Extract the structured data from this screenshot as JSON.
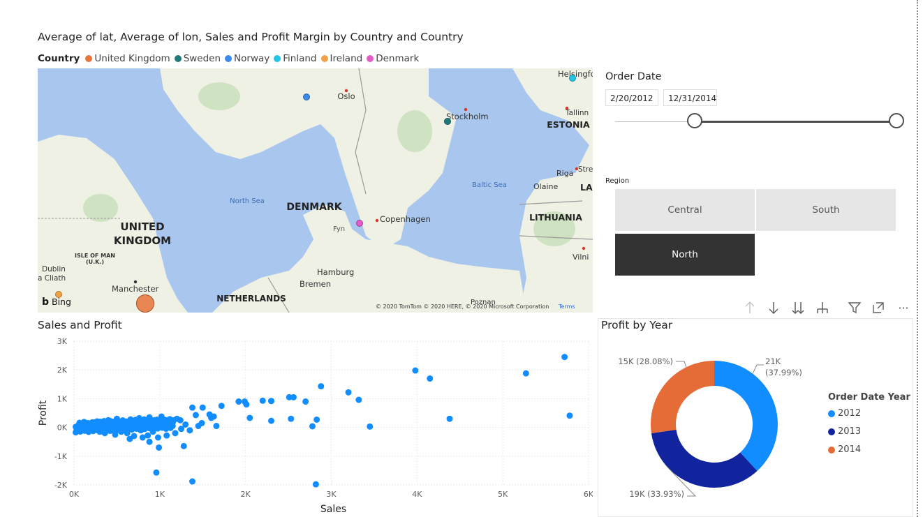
{
  "map": {
    "title": "Average of lat, Average of lon, Sales and Profit Margin by Country and Country",
    "legend_title": "Country",
    "legend": [
      {
        "label": "United Kingdom",
        "color": "#E8743B"
      },
      {
        "label": "Sweden",
        "color": "#1F7A7A"
      },
      {
        "label": "Norway",
        "color": "#3B8BEB"
      },
      {
        "label": "Finland",
        "color": "#22C4E8"
      },
      {
        "label": "Ireland",
        "color": "#F2A246"
      },
      {
        "label": "Denmark",
        "color": "#E35AC8"
      }
    ],
    "labels": {
      "uk": "UNITED",
      "uk2": "KINGDOM",
      "denmark": "DENMARK",
      "estonia": "ESTONIA",
      "lithuania": "LITHUANIA",
      "netherlands": "NETHERLANDS",
      "latvia": "LA",
      "north_sea": "North Sea",
      "baltic_sea": "Baltic Sea",
      "oslo": "Oslo",
      "stockholm": "Stockholm",
      "helsinki": "Helsingfo",
      "tallinn": "Tallinn",
      "riga": "Riga",
      "olaine": "Olaine",
      "copenhagen": "Copenhagen",
      "fyn": "Fyn",
      "hamburg": "Hamburg",
      "bremen": "Bremen",
      "manchester": "Manchester",
      "dublin": "Dublin",
      "cliath": "a Cliath",
      "isle_of_man": "ISLE OF MAN",
      "uk_short": "(U.K.)",
      "vilnius": "Vilni",
      "stre": "Stre",
      "poznan": "Poznan",
      "bing": "Bing",
      "attribution": "© 2020 TomTom © 2020 HERE, © 2020 Microsoft Corporation",
      "terms": "Terms"
    }
  },
  "order_date": {
    "title": "Order Date",
    "start": "2/20/2012",
    "end": "12/31/2014"
  },
  "region": {
    "title": "Region",
    "tiles": [
      {
        "label": "Central",
        "selected": false
      },
      {
        "label": "South",
        "selected": false
      },
      {
        "label": "North",
        "selected": true
      }
    ]
  },
  "toolbar": {
    "icons": [
      "arrow-up-icon",
      "arrow-down-icon",
      "double-arrow-down-icon",
      "expand-hierarchy-icon",
      "filter-icon",
      "focus-mode-icon",
      "more-options-icon"
    ],
    "more": "···"
  },
  "scatter": {
    "title": "Sales and Profit",
    "x_label": "Sales",
    "y_label": "Profit",
    "x_ticks": [
      "0K",
      "1K",
      "2K",
      "3K",
      "4K",
      "5K",
      "6K"
    ],
    "y_ticks": [
      "3K",
      "2K",
      "1K",
      "0K",
      "-1K",
      "-2K"
    ]
  },
  "donut": {
    "title": "Profit by Year",
    "legend_title": "Order Date Year",
    "slices": [
      {
        "year": "2012",
        "value_label": "21K",
        "pct_label": "(37.99%)",
        "color": "#118DFF"
      },
      {
        "year": "2013",
        "value_label": "19K (33.93%)",
        "pct_label": "",
        "color": "#12239E"
      },
      {
        "year": "2014",
        "value_label": "15K (28.08%)",
        "pct_label": "",
        "color": "#E66C37"
      }
    ]
  },
  "chart_data": [
    {
      "type": "scatter",
      "title": "Sales and Profit",
      "xlabel": "Sales",
      "ylabel": "Profit",
      "xlim": [
        0,
        6000
      ],
      "ylim": [
        -2000,
        3000
      ],
      "grid": true,
      "points": [
        [
          5720,
          2450
        ],
        [
          5780,
          410
        ],
        [
          5270,
          1880
        ],
        [
          3980,
          1980
        ],
        [
          4150,
          1700
        ],
        [
          4380,
          300
        ],
        [
          3200,
          1220
        ],
        [
          3320,
          960
        ],
        [
          3450,
          30
        ],
        [
          2880,
          1430
        ],
        [
          2830,
          270
        ],
        [
          2780,
          40
        ],
        [
          2510,
          1050
        ],
        [
          2560,
          1050
        ],
        [
          2530,
          300
        ],
        [
          2700,
          900
        ],
        [
          2820,
          -1980
        ],
        [
          2300,
          920
        ],
        [
          2300,
          230
        ],
        [
          2300,
          920
        ],
        [
          2200,
          930
        ],
        [
          2050,
          330
        ],
        [
          1920,
          900
        ],
        [
          1990,
          900
        ],
        [
          2010,
          800
        ],
        [
          1720,
          750
        ],
        [
          1580,
          450
        ],
        [
          1630,
          380
        ],
        [
          1500,
          690
        ],
        [
          1380,
          690
        ],
        [
          1420,
          430
        ],
        [
          1490,
          150
        ],
        [
          1600,
          330
        ],
        [
          1660,
          50
        ],
        [
          1380,
          -1880
        ],
        [
          1280,
          -650
        ],
        [
          1020,
          380
        ],
        [
          990,
          -700
        ],
        [
          960,
          -1570
        ],
        [
          880,
          -500
        ],
        [
          960,
          200
        ],
        [
          1000,
          100
        ],
        [
          1200,
          300
        ],
        [
          1100,
          100
        ],
        [
          900,
          80
        ],
        [
          800,
          150
        ],
        [
          780,
          -100
        ],
        [
          850,
          0
        ],
        [
          700,
          -300
        ],
        [
          650,
          -400
        ],
        [
          620,
          -200
        ],
        [
          550,
          -150
        ],
        [
          500,
          300
        ],
        [
          450,
          200
        ],
        [
          400,
          250
        ],
        [
          350,
          220
        ],
        [
          300,
          200
        ],
        [
          250,
          180
        ],
        [
          200,
          150
        ],
        [
          150,
          100
        ],
        [
          100,
          80
        ],
        [
          50,
          40
        ],
        [
          20,
          20
        ],
        [
          60,
          -40
        ],
        [
          120,
          -60
        ],
        [
          180,
          -120
        ],
        [
          240,
          -90
        ],
        [
          300,
          -150
        ],
        [
          360,
          -200
        ],
        [
          420,
          -120
        ],
        [
          480,
          -250
        ],
        [
          540,
          -60
        ],
        [
          600,
          100
        ],
        [
          660,
          280
        ],
        [
          720,
          220
        ],
        [
          760,
          320
        ],
        [
          820,
          280
        ],
        [
          880,
          350
        ],
        [
          940,
          250
        ],
        [
          1040,
          200
        ],
        [
          1140,
          150
        ],
        [
          1240,
          250
        ],
        [
          1300,
          100
        ],
        [
          1180,
          -200
        ],
        [
          1080,
          -280
        ],
        [
          980,
          -350
        ],
        [
          300,
          50
        ],
        [
          400,
          -50
        ],
        [
          500,
          0
        ],
        [
          700,
          150
        ],
        [
          600,
          -100
        ],
        [
          800,
          -350
        ],
        [
          860,
          -280
        ],
        [
          920,
          -150
        ],
        [
          250,
          -30
        ],
        [
          350,
          100
        ],
        [
          450,
          50
        ],
        [
          550,
          150
        ],
        [
          650,
          50
        ],
        [
          750,
          50
        ],
        [
          1050,
          0
        ],
        [
          1150,
          50
        ],
        [
          1250,
          -50
        ],
        [
          1350,
          -100
        ],
        [
          1450,
          50
        ]
      ]
    },
    {
      "type": "pie",
      "title": "Profit by Year",
      "legend_title": "Order Date Year",
      "categories": [
        "2012",
        "2013",
        "2014"
      ],
      "values": [
        21000,
        19000,
        15000
      ],
      "percentages": [
        37.99,
        33.93,
        28.08
      ],
      "colors": [
        "#118DFF",
        "#12239E",
        "#E66C37"
      ],
      "legend": "right"
    }
  ]
}
